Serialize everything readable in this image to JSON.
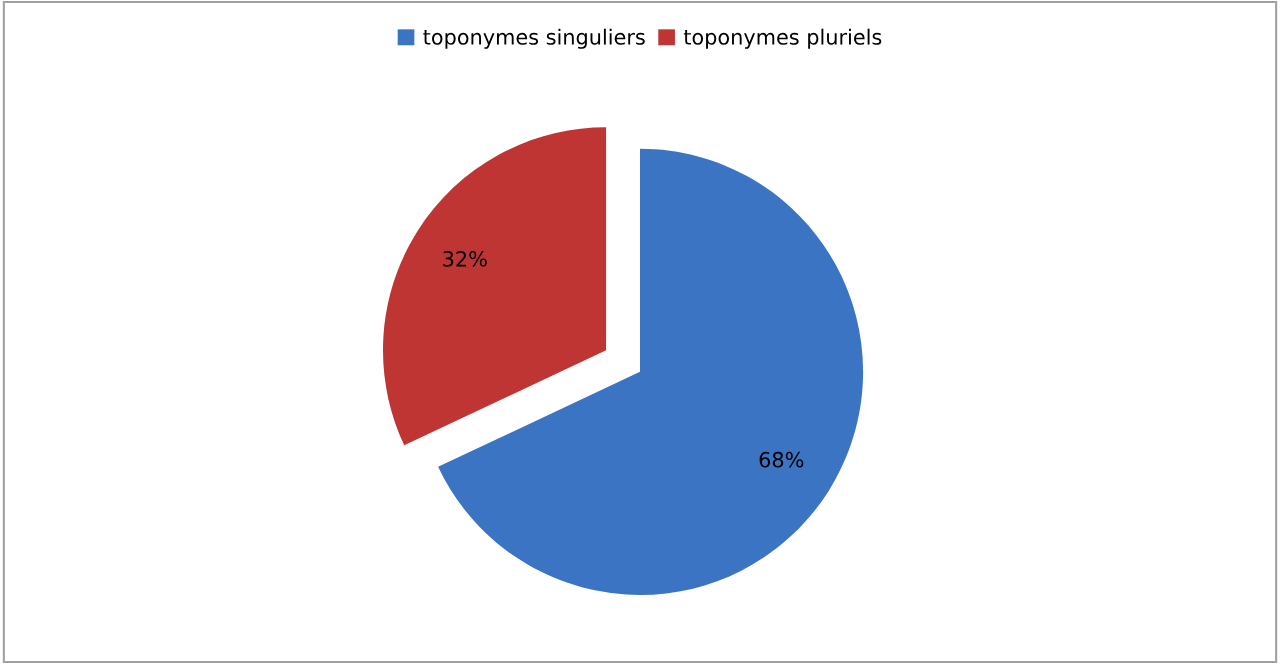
{
  "chart_data": {
    "type": "pie",
    "categories": [
      "toponymes singuliers",
      "toponymes pluriels"
    ],
    "values": [
      68,
      32
    ],
    "colors": [
      "#3a74c2",
      "#bf3533"
    ],
    "value_labels": [
      "68%",
      "32%"
    ],
    "legend": "top"
  }
}
